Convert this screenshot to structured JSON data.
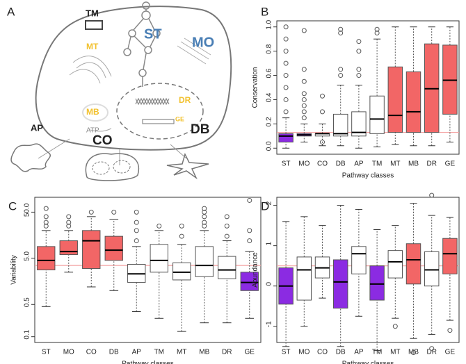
{
  "diagram": {
    "panel_label": "A",
    "labels": {
      "tm": "TM",
      "st": "ST",
      "mo": "MO",
      "mt": "MT",
      "dr": "DR",
      "mb": "MB",
      "ge": "GE",
      "atp": "ATP",
      "ap": "AP",
      "co": "CO",
      "db": "DB"
    }
  },
  "chart_data": [
    {
      "type": "box",
      "panel_label": "B",
      "xlabel": "Pathway classes",
      "ylabel": "Conservation",
      "categories": [
        "ST",
        "MO",
        "CO",
        "DB",
        "AP",
        "TM",
        "MT",
        "MB",
        "DR",
        "GE"
      ],
      "ylim": [
        -0.05,
        1.05
      ],
      "yticks": [
        {
          "value": 0,
          "label": "0.0"
        },
        0.2,
        0.4,
        0.6,
        0.8,
        {
          "value": 1,
          "label": "1.0"
        }
      ],
      "reference_line": 0.13,
      "reference_color": "#f4a3a3",
      "boxes": [
        {
          "low": 0.0,
          "q1": 0.05,
          "median": 0.1,
          "q3": 0.12,
          "high": 0.25,
          "color": "#8b2be2",
          "outliers": [
            0.3,
            0.4,
            0.5,
            0.6,
            0.7,
            0.8,
            0.9,
            1.0
          ]
        },
        {
          "low": 0.05,
          "q1": 0.1,
          "median": 0.11,
          "q3": 0.12,
          "high": 0.2,
          "color": "#8b2be2",
          "outliers": [
            0.25,
            0.3,
            0.35,
            0.4,
            0.45,
            0.55,
            0.65,
            0.97
          ]
        },
        {
          "low": 0.02,
          "q1": 0.1,
          "median": 0.12,
          "q3": 0.12,
          "high": 0.2,
          "color": "#ffffff",
          "outliers": [
            0.05,
            0.3,
            0.43
          ]
        },
        {
          "low": 0.02,
          "q1": 0.1,
          "median": 0.12,
          "q3": 0.28,
          "high": 0.52,
          "color": "#ffffff",
          "outliers": [
            0.6,
            0.65,
            0.95,
            0.98
          ]
        },
        {
          "low": 0.0,
          "q1": 0.1,
          "median": 0.13,
          "q3": 0.3,
          "high": 0.52,
          "color": "#ffffff",
          "outliers": [
            0.6,
            0.65,
            0.8,
            0.88
          ]
        },
        {
          "low": 0.01,
          "q1": 0.12,
          "median": 0.24,
          "q3": 0.43,
          "high": 0.9,
          "color": "#ffffff",
          "outliers": [
            0.95,
            0.98
          ]
        },
        {
          "low": 0.03,
          "q1": 0.13,
          "median": 0.27,
          "q3": 0.67,
          "high": 1.0,
          "color": "#f26666",
          "outliers": []
        },
        {
          "low": 0.02,
          "q1": 0.13,
          "median": 0.3,
          "q3": 0.63,
          "high": 1.0,
          "color": "#f26666",
          "outliers": []
        },
        {
          "low": 0.02,
          "q1": 0.13,
          "median": 0.49,
          "q3": 0.86,
          "high": 1.0,
          "color": "#f26666",
          "outliers": []
        },
        {
          "low": 0.05,
          "q1": 0.28,
          "median": 0.56,
          "q3": 0.85,
          "high": 1.0,
          "color": "#f26666",
          "outliers": []
        }
      ]
    },
    {
      "type": "box",
      "panel_label": "C",
      "log_scale": true,
      "xlabel": "Pathway classes",
      "ylabel": "Variability",
      "categories": [
        "ST",
        "MO",
        "CO",
        "DB",
        "AP",
        "TM",
        "MT",
        "MB",
        "DR",
        "GE"
      ],
      "ylim": [
        0.075,
        105
      ],
      "yticks": [
        0.1,
        0.5,
        {
          "value": 5,
          "label": "5.0"
        },
        {
          "value": 50,
          "label": "50.0"
        }
      ],
      "reference_line": 3.5,
      "reference_color": "#f4a3a3",
      "boxes": [
        {
          "low": 0.45,
          "q1": 2.8,
          "median": 4.5,
          "q3": 9,
          "high": 20,
          "color": "#f26666",
          "outliers": [
            25,
            30,
            40,
            60
          ]
        },
        {
          "low": 2.5,
          "q1": 6,
          "median": 7,
          "q3": 12,
          "high": 20,
          "color": "#f26666",
          "outliers": [
            25,
            30,
            40
          ]
        },
        {
          "low": 1.2,
          "q1": 3,
          "median": 12,
          "q3": 20,
          "high": 40,
          "color": "#f26666",
          "outliers": [
            50
          ]
        },
        {
          "low": 1,
          "q1": 4.5,
          "median": 7.5,
          "q3": 15,
          "high": 35,
          "color": "#f26666",
          "outliers": [
            50
          ]
        },
        {
          "low": 0.35,
          "q1": 1.5,
          "median": 2.3,
          "q3": 3.7,
          "high": 9,
          "color": "#ffffff",
          "outliers": [
            12,
            20,
            30,
            50
          ]
        },
        {
          "low": 0.25,
          "q1": 2.5,
          "median": 4.5,
          "q3": 10,
          "high": 20,
          "color": "#ffffff",
          "outliers": [
            25
          ]
        },
        {
          "low": 0.13,
          "q1": 1.7,
          "median": 2.5,
          "q3": 4,
          "high": 10,
          "color": "#ffffff",
          "outliers": [
            15,
            25
          ]
        },
        {
          "low": 0.2,
          "q1": 2,
          "median": 3.5,
          "q3": 9,
          "high": 20,
          "color": "#ffffff",
          "outliers": [
            25,
            30,
            40,
            50,
            60
          ]
        },
        {
          "low": 0.2,
          "q1": 1.8,
          "median": 2.8,
          "q3": 5.5,
          "high": 12,
          "color": "#ffffff",
          "outliers": [
            15,
            25,
            40
          ]
        },
        {
          "low": 0.25,
          "q1": 1,
          "median": 1.5,
          "q3": 2.5,
          "high": 7,
          "color": "#8b2be2",
          "outliers": [
            12,
            20,
            90
          ]
        }
      ]
    },
    {
      "type": "box",
      "panel_label": "D",
      "xlabel": "Pathway classes",
      "ylabel": "Abundance",
      "categories": [
        "ST",
        "MO",
        "CO",
        "DB",
        "AP",
        "TM",
        "MT",
        "MB",
        "DR",
        "GE"
      ],
      "ylim": [
        -1.4,
        2.2
      ],
      "yticks": [
        -1,
        0,
        1,
        2
      ],
      "reference_line": 0.5,
      "reference_color": "#f4a3a3",
      "boxes": [
        {
          "low": -1.5,
          "q1": -0.45,
          "median": 0,
          "q3": 0.45,
          "high": 1.6,
          "color": "#8b2be2",
          "outliers": []
        },
        {
          "low": -1.0,
          "q1": -0.35,
          "median": 0.4,
          "q3": 0.72,
          "high": 1.72,
          "color": "#ffffff",
          "outliers": []
        },
        {
          "low": -0.3,
          "q1": 0.2,
          "median": 0.45,
          "q3": 0.72,
          "high": 1.5,
          "color": "#ffffff",
          "outliers": []
        },
        {
          "low": -1.5,
          "q1": -0.55,
          "median": 0.1,
          "q3": 0.65,
          "high": 2.0,
          "color": "#8b2be2",
          "outliers": []
        },
        {
          "low": -0.75,
          "q1": 0.3,
          "median": 0.8,
          "q3": 0.98,
          "high": 1.9,
          "color": "#ffffff",
          "outliers": []
        },
        {
          "low": -1.6,
          "q1": -0.35,
          "median": 0.05,
          "q3": 0.5,
          "high": 1.4,
          "color": "#8b2be2",
          "outliers": []
        },
        {
          "low": -0.8,
          "q1": 0.2,
          "median": 0.6,
          "q3": 0.88,
          "high": 1.5,
          "color": "#ffffff",
          "outliers": [
            -1.0
          ]
        },
        {
          "low": -1.3,
          "q1": 0.05,
          "median": 0.65,
          "q3": 1.05,
          "high": 2.05,
          "color": "#f26666",
          "outliers": [
            -1.65
          ]
        },
        {
          "low": -1.2,
          "q1": 0,
          "median": 0.4,
          "q3": 0.85,
          "high": 1.75,
          "color": "#ffffff",
          "outliers": [
            -1.55,
            2.25
          ]
        },
        {
          "low": -0.85,
          "q1": 0.3,
          "median": 0.8,
          "q3": 1.18,
          "high": 1.7,
          "color": "#f26666",
          "outliers": [
            -1.1
          ]
        }
      ]
    }
  ]
}
